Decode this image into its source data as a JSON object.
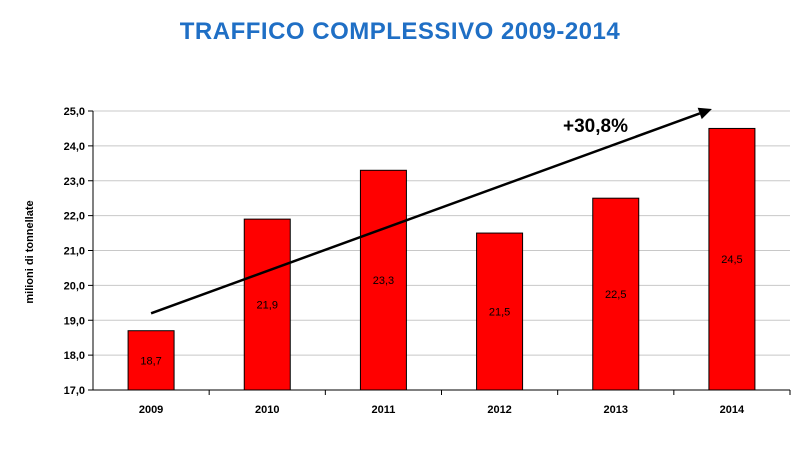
{
  "colors": {
    "title": "#1f6fc5",
    "bar": "#ff0000",
    "bar_stroke": "#000000",
    "grid": "#c8c8c8",
    "arrow": "#000000"
  },
  "chart_data": {
    "type": "bar",
    "title": "TRAFFICO COMPLESSIVO 2009-2014",
    "ylabel": "milioni di tonnellate",
    "xlabel": "",
    "categories": [
      "2009",
      "2010",
      "2011",
      "2012",
      "2013",
      "2014"
    ],
    "values": [
      18.7,
      21.9,
      23.3,
      21.5,
      22.5,
      24.5
    ],
    "value_labels": [
      "18,7",
      "21,9",
      "23,3",
      "21,5",
      "22,5",
      "24,5"
    ],
    "ylim": [
      17.0,
      25.0
    ],
    "yticks": [
      "17,0",
      "18,0",
      "19,0",
      "20,0",
      "21,0",
      "22,0",
      "23,0",
      "24,0",
      "25,0"
    ],
    "grid": true,
    "legend": "none",
    "annotation": {
      "text": "+30,8%",
      "type": "trend-arrow",
      "from_value": 19.2,
      "to_value": 25.0
    }
  }
}
